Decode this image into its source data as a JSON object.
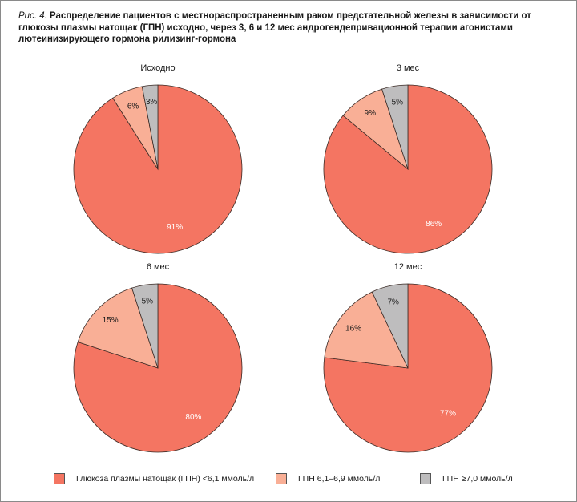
{
  "caption": {
    "fig_label": "Рис. 4.",
    "text": "Распределение пациентов с местнораспространенным раком предстательной железы в зависимости от глюкозы плазмы натощак (ГПН) исходно, через 3, 6 и 12 мес андрогендепривационной терапии агонистами лютеинизирующего гормона рилизинг-гормона"
  },
  "chart_data": [
    {
      "type": "pie",
      "title": "Исходно",
      "categories": [
        "Глюкоза плазмы натощак (ГПН) <6,1 ммоль/л",
        "ГПН 6,1–6,9 ммоль/л",
        "ГПН ≥7,0 ммоль/л"
      ],
      "values": [
        91,
        6,
        3
      ],
      "labels": [
        "91%",
        "6%",
        "3%"
      ]
    },
    {
      "type": "pie",
      "title": "3 мес",
      "categories": [
        "Глюкоза плазмы натощак (ГПН) <6,1 ммоль/л",
        "ГПН 6,1–6,9 ммоль/л",
        "ГПН ≥7,0 ммоль/л"
      ],
      "values": [
        86,
        9,
        5
      ],
      "labels": [
        "86%",
        "9%",
        "5%"
      ]
    },
    {
      "type": "pie",
      "title": "6 мес",
      "categories": [
        "Глюкоза плазмы натощак (ГПН) <6,1 ммоль/л",
        "ГПН 6,1–6,9 ммоль/л",
        "ГПН ≥7,0 ммоль/л"
      ],
      "values": [
        80,
        15,
        5
      ],
      "labels": [
        "80%",
        "15%",
        "5%"
      ]
    },
    {
      "type": "pie",
      "title": "12 мес",
      "categories": [
        "Глюкоза плазмы натощак (ГПН) <6,1 ммоль/л",
        "ГПН 6,1–6,9 ммоль/л",
        "ГПН ≥7,0 ммоль/л"
      ],
      "values": [
        77,
        16,
        7
      ],
      "labels": [
        "77%",
        "16%",
        "7%"
      ]
    }
  ],
  "legend": {
    "placement": "bottom",
    "items": [
      {
        "label": "Глюкоза плазмы натощак (ГПН) <6,1 ммоль/л",
        "color": "#F47562"
      },
      {
        "label": "ГПН 6,1–6,9 ммоль/л",
        "color": "#F9AF96"
      },
      {
        "label": "ГПН ≥7,0 ммоль/л",
        "color": "#BEBDBE"
      }
    ]
  }
}
